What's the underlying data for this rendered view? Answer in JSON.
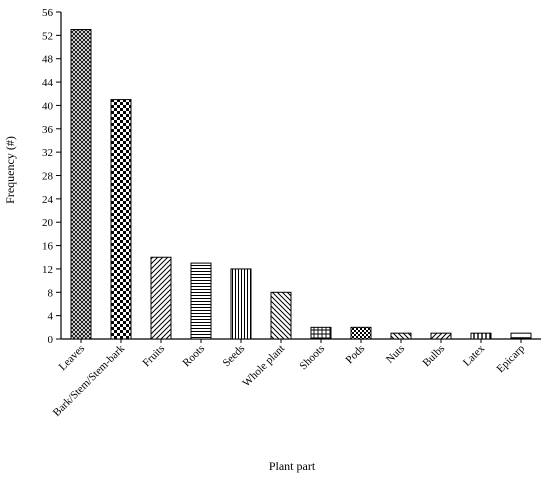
{
  "chart_data": {
    "type": "bar",
    "title": "",
    "xlabel": "Plant part",
    "ylabel": "Frequency (#)",
    "ylim": [
      0,
      56
    ],
    "ytick_step": 4,
    "yticks": [
      "0",
      "4",
      "8",
      "12",
      "16",
      "20",
      "24",
      "28",
      "32",
      "36",
      "40",
      "44",
      "48",
      "52",
      "56"
    ],
    "grid": false,
    "categories": [
      "Leaves",
      "Bark/Stem/Stem-bark",
      "Fruits",
      "Roots",
      "Seeds",
      "Whole plant",
      "Shoots",
      "Pods",
      "Nuts",
      "Bulbs",
      "Latex",
      "Epicarp"
    ],
    "values": [
      53,
      41,
      14,
      13,
      12,
      8,
      2,
      2,
      1,
      1,
      1,
      1
    ],
    "patterns": [
      "crosshatch-fine",
      "checker",
      "diagonal-right",
      "horizontal",
      "vertical",
      "diagonal-left",
      "grid",
      "checker-small",
      "diagonal-left",
      "diagonal-right",
      "vertical-wide",
      "solid-line"
    ]
  }
}
